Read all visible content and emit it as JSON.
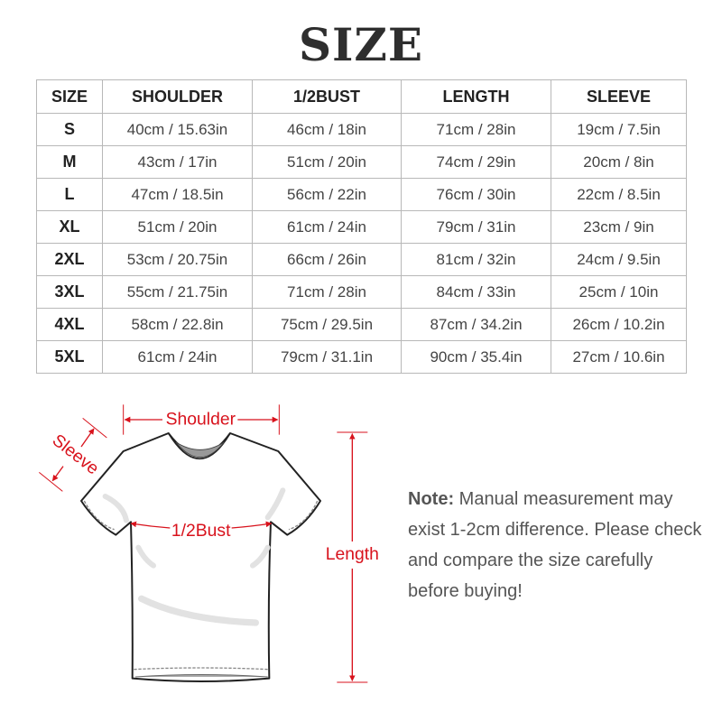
{
  "title": "SIZE",
  "table": {
    "headers": [
      "SIZE",
      "SHOULDER",
      "1/2BUST",
      "LENGTH",
      "SLEEVE"
    ],
    "rows": [
      [
        "S",
        "40cm / 15.63in",
        "46cm / 18in",
        "71cm / 28in",
        "19cm / 7.5in"
      ],
      [
        "M",
        "43cm / 17in",
        "51cm / 20in",
        "74cm / 29in",
        "20cm / 8in"
      ],
      [
        "L",
        "47cm / 18.5in",
        "56cm / 22in",
        "76cm / 30in",
        "22cm / 8.5in"
      ],
      [
        "XL",
        "51cm / 20in",
        "61cm / 24in",
        "79cm / 31in",
        "23cm / 9in"
      ],
      [
        "2XL",
        "53cm / 20.75in",
        "66cm / 26in",
        "81cm / 32in",
        "24cm / 9.5in"
      ],
      [
        "3XL",
        "55cm / 21.75in",
        "71cm / 28in",
        "84cm / 33in",
        "25cm / 10in"
      ],
      [
        "4XL",
        "58cm / 22.8in",
        "75cm / 29.5in",
        "87cm / 34.2in",
        "26cm / 10.2in"
      ],
      [
        "5XL",
        "61cm / 24in",
        "79cm / 31.1in",
        "90cm / 35.4in",
        "27cm / 10.6in"
      ]
    ]
  },
  "diagram": {
    "shoulder_label": "Shoulder",
    "sleeve_label": "Sleeve",
    "bust_label": "1/2Bust",
    "length_label": "Length",
    "accent_color": "#d8121c"
  },
  "note": {
    "label": "Note:",
    "text": "Manual measurement may exist 1-2cm difference. Please check and compare the size carefully before buying!"
  }
}
